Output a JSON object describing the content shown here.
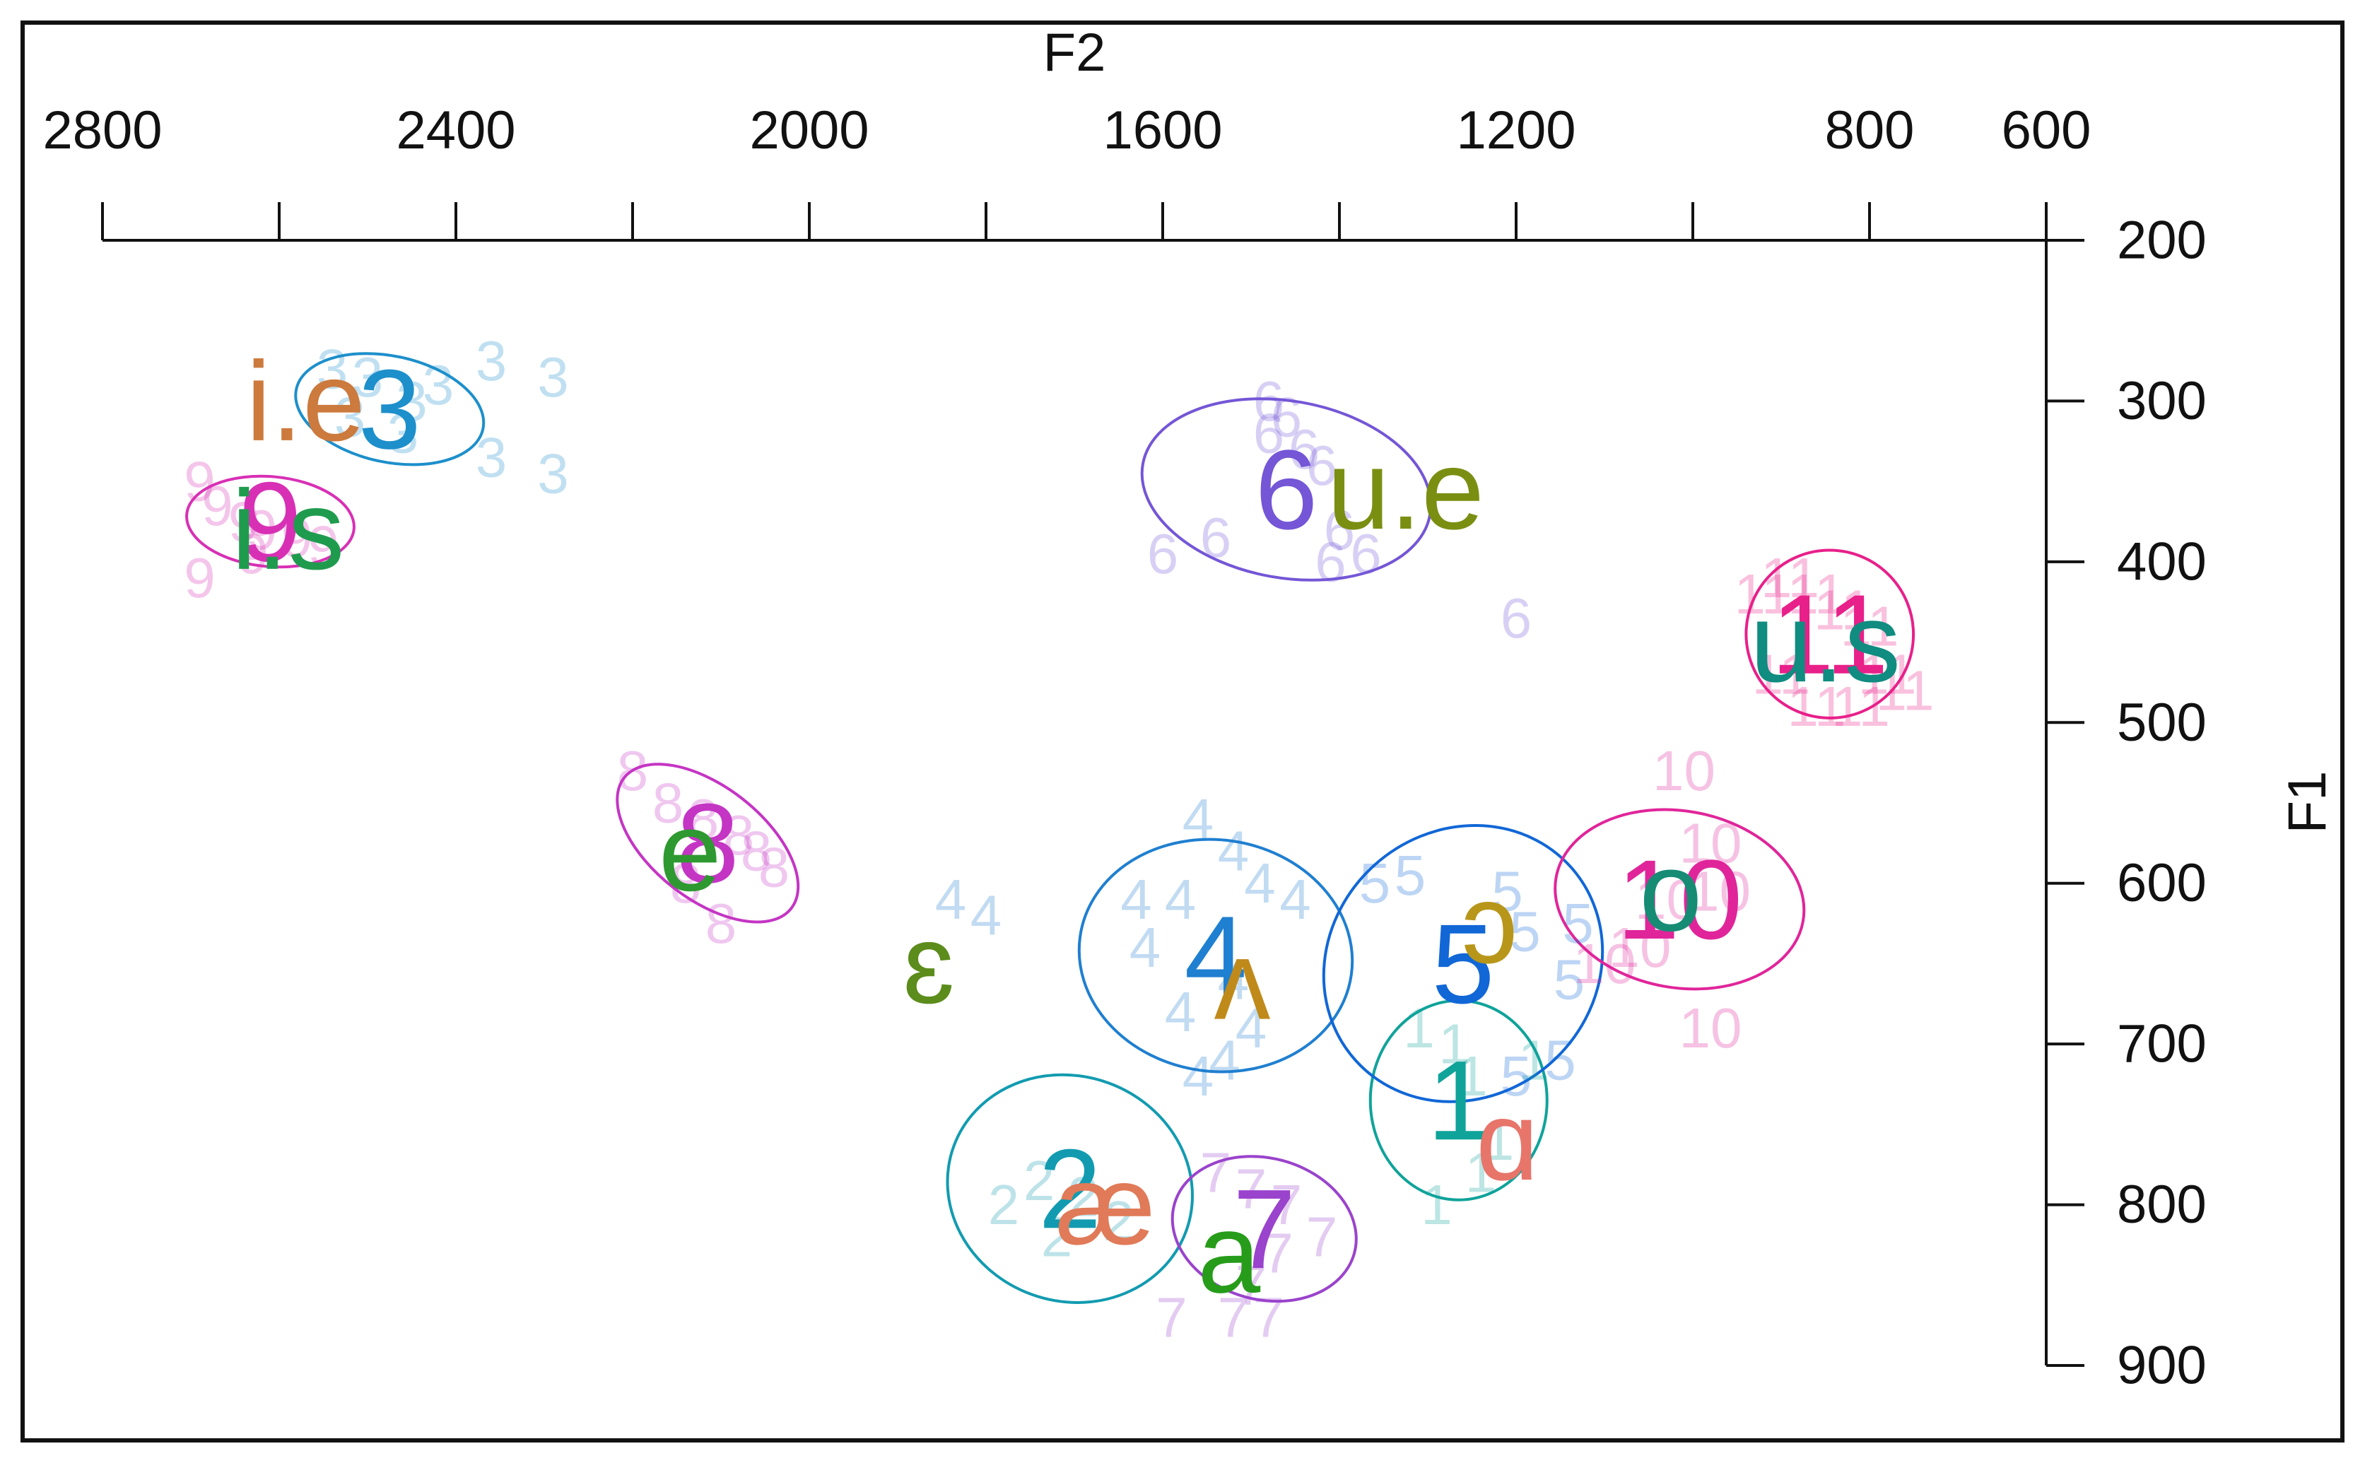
{
  "chart_data": {
    "type": "scatter",
    "title": "",
    "xlabel": "F2",
    "ylabel": "F1",
    "xlim": [
      2800,
      600
    ],
    "ylim": [
      200,
      900
    ],
    "xticks": [
      2800,
      2400,
      2000,
      1600,
      1200,
      800,
      600
    ],
    "yticks": [
      200,
      300,
      400,
      500,
      600,
      700,
      800,
      900
    ],
    "x_axis_position": "top",
    "y_axis_position": "right",
    "grid": false,
    "legend": "none",
    "speaker_groups": [
      {
        "label": "1",
        "color": "#10a39a",
        "mean": [
          1265,
          735
        ],
        "ellipse": {
          "rx": 100,
          "ry": 62,
          "angle": 0
        },
        "tokens": [
          [
            1310,
            690
          ],
          [
            1270,
            700
          ],
          [
            1250,
            720
          ],
          [
            1180,
            710
          ],
          [
            1220,
            760
          ],
          [
            1290,
            800
          ],
          [
            1240,
            780
          ]
        ]
      },
      {
        "label": "2",
        "color": "#129bb0",
        "mean": [
          1705,
          790
        ],
        "ellipse": {
          "rx": 140,
          "ry": 70,
          "angle": 20
        },
        "tokens": [
          [
            1740,
            785
          ],
          [
            1780,
            800
          ],
          [
            1720,
            820
          ],
          [
            1650,
            810
          ],
          [
            1690,
            795
          ]
        ]
      },
      {
        "label": "3",
        "color": "#1d8fcb",
        "mean": [
          2475,
          305
        ],
        "ellipse": {
          "rx": 108,
          "ry": 33,
          "angle": 12
        },
        "tokens": [
          [
            2540,
            280
          ],
          [
            2500,
            285
          ],
          [
            2450,
            300
          ],
          [
            2420,
            290
          ],
          [
            2360,
            275
          ],
          [
            2290,
            285
          ],
          [
            2290,
            345
          ],
          [
            2360,
            335
          ],
          [
            2460,
            320
          ],
          [
            2520,
            310
          ]
        ]
      },
      {
        "label": "4",
        "color": "#1f7fd0",
        "mean": [
          1540,
          645
        ],
        "ellipse": {
          "rx": 155,
          "ry": 72,
          "angle": 8
        },
        "tokens": [
          [
            1560,
            560
          ],
          [
            1520,
            580
          ],
          [
            1490,
            600
          ],
          [
            1450,
            610
          ],
          [
            1580,
            610
          ],
          [
            1630,
            610
          ],
          [
            1620,
            640
          ],
          [
            1580,
            680
          ],
          [
            1520,
            660
          ],
          [
            1500,
            690
          ],
          [
            1530,
            710
          ],
          [
            1560,
            720
          ],
          [
            1800,
            620
          ],
          [
            1840,
            610
          ]
        ]
      },
      {
        "label": "5",
        "color": "#1167d6",
        "mean": [
          1260,
          650
        ],
        "ellipse": {
          "rx": 150,
          "ry": 90,
          "angle": 48
        },
        "tokens": [
          [
            1360,
            600
          ],
          [
            1320,
            595
          ],
          [
            1210,
            605
          ],
          [
            1190,
            630
          ],
          [
            1140,
            660
          ],
          [
            1150,
            710
          ],
          [
            1200,
            720
          ],
          [
            1130,
            625
          ]
        ]
      },
      {
        "label": "6",
        "color": "#7456d6",
        "mean": [
          1460,
          355
        ],
        "ellipse": {
          "rx": 165,
          "ry": 55,
          "angle": 10
        },
        "tokens": [
          [
            1480,
            300
          ],
          [
            1460,
            310
          ],
          [
            1440,
            330
          ],
          [
            1420,
            340
          ],
          [
            1400,
            380
          ],
          [
            1370,
            395
          ],
          [
            1540,
            385
          ],
          [
            1600,
            395
          ],
          [
            1410,
            400
          ],
          [
            1200,
            435
          ],
          [
            1480,
            320
          ]
        ]
      },
      {
        "label": "7",
        "color": "#9a43cc",
        "mean": [
          1485,
          815
        ],
        "ellipse": {
          "rx": 80,
          "ry": 58,
          "angle": -75
        },
        "tokens": [
          [
            1540,
            780
          ],
          [
            1500,
            790
          ],
          [
            1460,
            800
          ],
          [
            1470,
            830
          ],
          [
            1500,
            850
          ],
          [
            1420,
            820
          ],
          [
            1520,
            870
          ],
          [
            1480,
            870
          ],
          [
            1590,
            870
          ]
        ]
      },
      {
        "label": "8",
        "color": "#c435c4",
        "mean": [
          2115,
          575
        ],
        "ellipse": {
          "rx": 120,
          "ry": 35,
          "angle": 38
        },
        "tokens": [
          [
            2200,
            530
          ],
          [
            2160,
            550
          ],
          [
            2120,
            560
          ],
          [
            2080,
            570
          ],
          [
            2060,
            580
          ],
          [
            2040,
            590
          ],
          [
            2140,
            600
          ],
          [
            2100,
            625
          ]
        ]
      },
      {
        "label": "9",
        "color": "#d830b5",
        "mean": [
          2610,
          375
        ],
        "ellipse": {
          "rx": 95,
          "ry": 28,
          "angle": 5
        },
        "tokens": [
          [
            2690,
            350
          ],
          [
            2670,
            365
          ],
          [
            2640,
            375
          ],
          [
            2620,
            380
          ],
          [
            2580,
            385
          ],
          [
            2550,
            390
          ],
          [
            2690,
            410
          ],
          [
            2630,
            395
          ]
        ]
      },
      {
        "label": "10",
        "color": "#e0259a",
        "mean": [
          1015,
          610
        ],
        "ellipse": {
          "rx": 100,
          "ry": 78,
          "angle": -80
        },
        "tokens": [
          [
            1010,
            530
          ],
          [
            980,
            575
          ],
          [
            970,
            605
          ],
          [
            1030,
            610
          ],
          [
            1060,
            640
          ],
          [
            1100,
            650
          ],
          [
            980,
            690
          ]
        ]
      },
      {
        "label": "11",
        "color": "#e8208a",
        "mean": [
          845,
          445
        ],
        "ellipse": {
          "rx": 95,
          "ry": 52,
          "angle": 68
        },
        "tokens": [
          [
            920,
            420
          ],
          [
            890,
            410
          ],
          [
            860,
            420
          ],
          [
            830,
            430
          ],
          [
            800,
            440
          ],
          [
            780,
            470
          ],
          [
            810,
            490
          ],
          [
            860,
            490
          ],
          [
            760,
            480
          ],
          [
            900,
            470
          ]
        ]
      }
    ],
    "vowel_means": [
      {
        "label": "i.e",
        "x": 2570,
        "y": 300,
        "color": "#cc7a3d"
      },
      {
        "label": "i.s",
        "x": 2590,
        "y": 380,
        "color": "#1f9b4e"
      },
      {
        "label": "u.e",
        "x": 1325,
        "y": 355,
        "color": "#7a8f12"
      },
      {
        "label": "u.s",
        "x": 850,
        "y": 450,
        "color": "#108c80"
      },
      {
        "label": "e",
        "x": 2135,
        "y": 580,
        "color": "#2e9930"
      },
      {
        "label": "ɛ",
        "x": 1865,
        "y": 650,
        "color": "#5c8c1c"
      },
      {
        "label": "ʌ",
        "x": 1510,
        "y": 660,
        "color": "#c08a1a"
      },
      {
        "label": "ɔ",
        "x": 1230,
        "y": 625,
        "color": "#b8961a"
      },
      {
        "label": "o",
        "x": 1025,
        "y": 605,
        "color": "#168c75"
      },
      {
        "label": "ɑ",
        "x": 1210,
        "y": 760,
        "color": "#e8756a"
      },
      {
        "label": "æ",
        "x": 1665,
        "y": 800,
        "color": "#e07a58"
      },
      {
        "label": "a",
        "x": 1525,
        "y": 830,
        "color": "#269c1a"
      }
    ]
  }
}
